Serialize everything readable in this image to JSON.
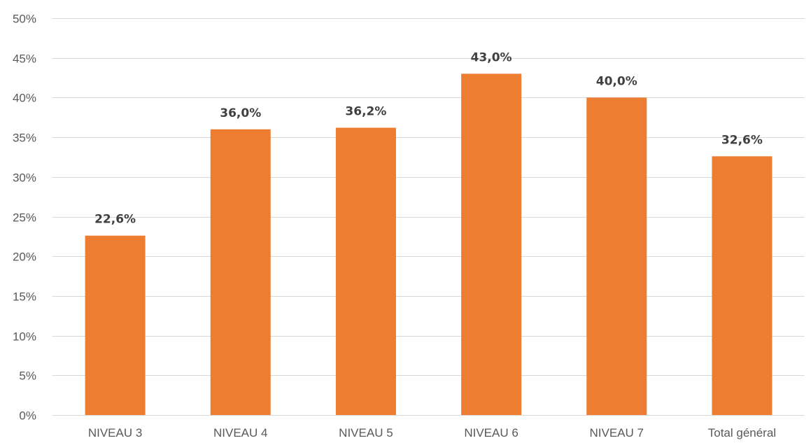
{
  "chart_data": {
    "type": "bar",
    "title": "",
    "xlabel": "",
    "ylabel": "",
    "categories": [
      "NIVEAU 3",
      "NIVEAU 4",
      "NIVEAU 5",
      "NIVEAU 6",
      "NIVEAU 7",
      "Total général"
    ],
    "values": [
      22.6,
      36.0,
      36.2,
      43.0,
      40.0,
      32.6
    ],
    "data_labels": [
      "22,6%",
      "36,0%",
      "36,2%",
      "43,0%",
      "40,0%",
      "32,6%"
    ],
    "ylim": [
      0,
      50
    ],
    "yticks": [
      0,
      5,
      10,
      15,
      20,
      25,
      30,
      35,
      40,
      45,
      50
    ],
    "ytick_labels": [
      "0%",
      "5%",
      "10%",
      "15%",
      "20%",
      "25%",
      "30%",
      "35%",
      "40%",
      "45%",
      "50%"
    ],
    "grid": true,
    "legend": "none",
    "bar_color": "#ED7D31"
  }
}
